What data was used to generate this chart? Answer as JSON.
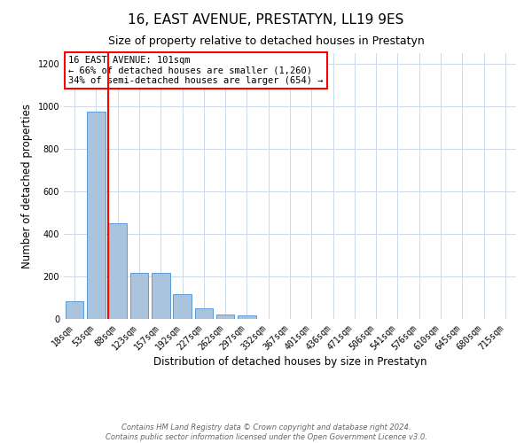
{
  "title": "16, EAST AVENUE, PRESTATYN, LL19 9ES",
  "subtitle": "Size of property relative to detached houses in Prestatyn",
  "xlabel": "Distribution of detached houses by size in Prestatyn",
  "ylabel": "Number of detached properties",
  "bin_labels": [
    "18sqm",
    "53sqm",
    "88sqm",
    "123sqm",
    "157sqm",
    "192sqm",
    "227sqm",
    "262sqm",
    "297sqm",
    "332sqm",
    "367sqm",
    "401sqm",
    "436sqm",
    "471sqm",
    "506sqm",
    "541sqm",
    "576sqm",
    "610sqm",
    "645sqm",
    "680sqm",
    "715sqm"
  ],
  "bar_values": [
    85,
    975,
    450,
    215,
    215,
    115,
    50,
    20,
    15,
    0,
    0,
    0,
    0,
    0,
    0,
    0,
    0,
    0,
    0,
    0,
    0
  ],
  "bar_color": "#aac4de",
  "bar_edge_color": "#5b9bd5",
  "vline_color": "red",
  "vline_x_index": 2,
  "annotation_text": "16 EAST AVENUE: 101sqm\n← 66% of detached houses are smaller (1,260)\n34% of semi-detached houses are larger (654) →",
  "annotation_box_color": "white",
  "annotation_box_edge_color": "red",
  "ylim": [
    0,
    1250
  ],
  "yticks": [
    0,
    200,
    400,
    600,
    800,
    1000,
    1200
  ],
  "bg_color": "white",
  "grid_color": "#ccd9e8",
  "title_fontsize": 11,
  "subtitle_fontsize": 9,
  "axis_label_fontsize": 8.5,
  "tick_fontsize": 7,
  "annotation_fontsize": 7.5,
  "footer_fontsize": 6
}
